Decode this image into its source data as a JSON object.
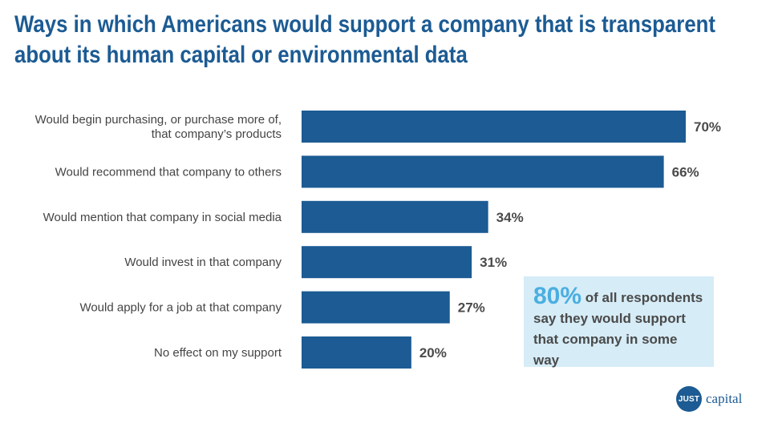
{
  "title": "Ways in which Americans would support a company that is transparent about its human capital or environmental data",
  "title_lines": [
    "Ways in which Americans would support a company that is transparent",
    "about its human capital or environmental data"
  ],
  "chart_data": {
    "type": "bar",
    "orientation": "horizontal",
    "categories": [
      [
        "Would begin purchasing, or purchase more of,",
        "that company’s products"
      ],
      [
        "Would recommend that company to others"
      ],
      [
        "Would mention that company in social media"
      ],
      [
        "Would invest in that company"
      ],
      [
        "Would apply for a job at that company"
      ],
      [
        "No effect on my support"
      ]
    ],
    "values": [
      70,
      66,
      34,
      31,
      27,
      20
    ],
    "value_labels": [
      "70%",
      "66%",
      "34%",
      "31%",
      "27%",
      "20%"
    ],
    "unit": "%",
    "bar_color": "#1c5b93",
    "xlim": [
      0,
      70
    ],
    "grid": false
  },
  "callout": {
    "highlight": "80%",
    "line1": "of all respondents",
    "line2": "say they would support",
    "line3": "that company in some way",
    "background": "#d6ecf7",
    "highlight_color": "#4aaee0"
  },
  "logo": {
    "badge": "JUST",
    "word": "capital",
    "color": "#1c5b93"
  }
}
